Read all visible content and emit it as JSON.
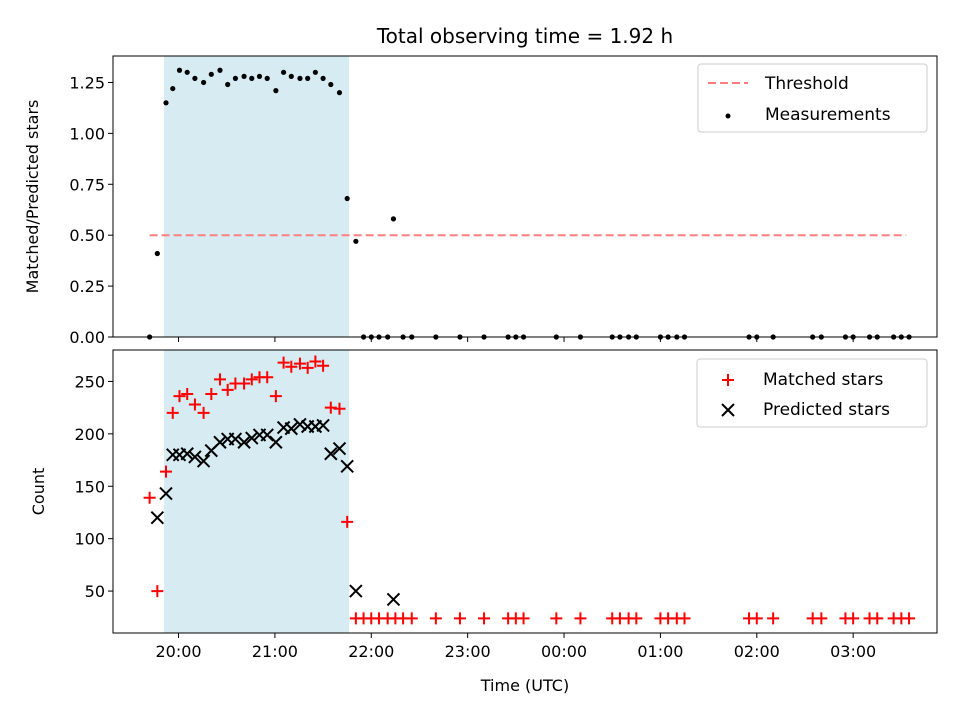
{
  "chart_data": {
    "type": "scatter",
    "title": "Total observing time = 1.92 h",
    "xlabel": "Time (UTC)",
    "x_ticks": [
      "20:00",
      "21:00",
      "22:00",
      "23:00",
      "00:00",
      "01:00",
      "02:00",
      "03:00"
    ],
    "x_tick_hours": [
      20,
      21,
      22,
      23,
      24,
      25,
      26,
      27
    ],
    "xlim_hours": [
      19.32,
      27.87
    ],
    "observing_window_hours": [
      19.85,
      21.77
    ],
    "colors": {
      "window": "#add8e6",
      "matched": "#ff0000",
      "predicted": "#000000",
      "threshold": "#ff7f7f",
      "measurements": "#000000"
    },
    "panels": [
      {
        "ylabel": "Matched/Predicted stars",
        "ylim": [
          0,
          1.38
        ],
        "y_ticks": [
          0.0,
          0.25,
          0.5,
          0.75,
          1.0,
          1.25
        ],
        "y_tick_labels": [
          "0.00",
          "0.25",
          "0.50",
          "0.75",
          "1.00",
          "1.25"
        ],
        "legend": {
          "position": "top-right",
          "entries": [
            "Threshold",
            "Measurements"
          ]
        },
        "threshold": {
          "name": "Threshold",
          "value": 0.5,
          "x_range_hours": [
            19.7,
            27.55
          ]
        },
        "series": [
          {
            "name": "Measurements",
            "marker": "dot",
            "points": [
              [
                19.7,
                0.0
              ],
              [
                19.78,
                0.41
              ],
              [
                19.87,
                1.15
              ],
              [
                19.94,
                1.22
              ],
              [
                20.01,
                1.31
              ],
              [
                20.09,
                1.3
              ],
              [
                20.17,
                1.27
              ],
              [
                20.26,
                1.25
              ],
              [
                20.34,
                1.29
              ],
              [
                20.43,
                1.31
              ],
              [
                20.51,
                1.24
              ],
              [
                20.59,
                1.27
              ],
              [
                20.68,
                1.28
              ],
              [
                20.76,
                1.27
              ],
              [
                20.84,
                1.28
              ],
              [
                20.92,
                1.27
              ],
              [
                21.01,
                1.21
              ],
              [
                21.09,
                1.3
              ],
              [
                21.17,
                1.28
              ],
              [
                21.26,
                1.27
              ],
              [
                21.34,
                1.27
              ],
              [
                21.42,
                1.3
              ],
              [
                21.5,
                1.27
              ],
              [
                21.58,
                1.24
              ],
              [
                21.67,
                1.2
              ],
              [
                21.75,
                0.68
              ],
              [
                21.84,
                0.47
              ],
              [
                21.92,
                0.0
              ],
              [
                22.0,
                0.0
              ],
              [
                22.08,
                0.0
              ],
              [
                22.17,
                0.0
              ],
              [
                22.23,
                0.58
              ],
              [
                22.33,
                0.0
              ],
              [
                22.42,
                0.0
              ],
              [
                22.67,
                0.0
              ],
              [
                22.92,
                0.0
              ],
              [
                23.17,
                0.0
              ],
              [
                23.42,
                0.0
              ],
              [
                23.5,
                0.0
              ],
              [
                23.58,
                0.0
              ],
              [
                23.92,
                0.0
              ],
              [
                24.17,
                0.0
              ],
              [
                24.5,
                0.0
              ],
              [
                24.58,
                0.0
              ],
              [
                24.67,
                0.0
              ],
              [
                24.75,
                0.0
              ],
              [
                25.0,
                0.0
              ],
              [
                25.08,
                0.0
              ],
              [
                25.17,
                0.0
              ],
              [
                25.25,
                0.0
              ],
              [
                25.92,
                0.0
              ],
              [
                26.0,
                0.0
              ],
              [
                26.17,
                0.0
              ],
              [
                26.58,
                0.0
              ],
              [
                26.67,
                0.0
              ],
              [
                26.92,
                0.0
              ],
              [
                27.0,
                0.0
              ],
              [
                27.17,
                0.0
              ],
              [
                27.25,
                0.0
              ],
              [
                27.42,
                0.0
              ],
              [
                27.5,
                0.0
              ],
              [
                27.58,
                0.0
              ]
            ]
          }
        ]
      },
      {
        "ylabel": "Count",
        "ylim": [
          10,
          280
        ],
        "y_ticks": [
          50,
          100,
          150,
          200,
          250
        ],
        "y_tick_labels": [
          "50",
          "100",
          "150",
          "200",
          "250"
        ],
        "legend": {
          "position": "top-right",
          "entries": [
            "Matched stars",
            "Predicted stars"
          ]
        },
        "series": [
          {
            "name": "Matched stars",
            "marker": "plus",
            "points": [
              [
                19.7,
                139
              ],
              [
                19.78,
                50
              ],
              [
                19.87,
                164
              ],
              [
                19.94,
                220
              ],
              [
                20.01,
                236
              ],
              [
                20.09,
                238
              ],
              [
                20.17,
                228
              ],
              [
                20.26,
                220
              ],
              [
                20.34,
                238
              ],
              [
                20.43,
                252
              ],
              [
                20.51,
                242
              ],
              [
                20.59,
                248
              ],
              [
                20.68,
                248
              ],
              [
                20.76,
                252
              ],
              [
                20.84,
                254
              ],
              [
                20.92,
                254
              ],
              [
                21.01,
                236
              ],
              [
                21.09,
                268
              ],
              [
                21.17,
                264
              ],
              [
                21.26,
                267
              ],
              [
                21.34,
                263
              ],
              [
                21.42,
                269
              ],
              [
                21.5,
                265
              ],
              [
                21.58,
                225
              ],
              [
                21.67,
                224
              ],
              [
                21.75,
                116
              ],
              [
                21.84,
                24
              ],
              [
                21.92,
                24
              ],
              [
                22.0,
                24
              ],
              [
                22.08,
                24
              ],
              [
                22.17,
                24
              ],
              [
                22.25,
                24
              ],
              [
                22.33,
                24
              ],
              [
                22.42,
                24
              ],
              [
                22.67,
                24
              ],
              [
                22.92,
                24
              ],
              [
                23.17,
                24
              ],
              [
                23.42,
                24
              ],
              [
                23.5,
                24
              ],
              [
                23.58,
                24
              ],
              [
                23.92,
                24
              ],
              [
                24.17,
                24
              ],
              [
                24.5,
                24
              ],
              [
                24.58,
                24
              ],
              [
                24.67,
                24
              ],
              [
                24.75,
                24
              ],
              [
                25.0,
                24
              ],
              [
                25.08,
                24
              ],
              [
                25.17,
                24
              ],
              [
                25.25,
                24
              ],
              [
                25.92,
                24
              ],
              [
                26.0,
                24
              ],
              [
                26.17,
                24
              ],
              [
                26.58,
                24
              ],
              [
                26.67,
                24
              ],
              [
                26.92,
                24
              ],
              [
                27.0,
                24
              ],
              [
                27.17,
                24
              ],
              [
                27.25,
                24
              ],
              [
                27.42,
                24
              ],
              [
                27.5,
                24
              ],
              [
                27.58,
                24
              ]
            ]
          },
          {
            "name": "Predicted stars",
            "marker": "x",
            "points": [
              [
                19.78,
                120
              ],
              [
                19.87,
                143
              ],
              [
                19.94,
                180
              ],
              [
                20.01,
                180
              ],
              [
                20.09,
                181
              ],
              [
                20.17,
                178
              ],
              [
                20.26,
                174
              ],
              [
                20.34,
                184
              ],
              [
                20.43,
                192
              ],
              [
                20.51,
                195
              ],
              [
                20.59,
                195
              ],
              [
                20.68,
                192
              ],
              [
                20.76,
                196
              ],
              [
                20.84,
                199
              ],
              [
                20.92,
                199
              ],
              [
                21.01,
                192
              ],
              [
                21.09,
                206
              ],
              [
                21.17,
                205
              ],
              [
                21.26,
                209
              ],
              [
                21.34,
                207
              ],
              [
                21.42,
                207
              ],
              [
                21.5,
                208
              ],
              [
                21.58,
                181
              ],
              [
                21.67,
                186
              ],
              [
                21.75,
                169
              ],
              [
                21.84,
                50
              ],
              [
                22.23,
                42
              ]
            ]
          }
        ]
      }
    ]
  }
}
